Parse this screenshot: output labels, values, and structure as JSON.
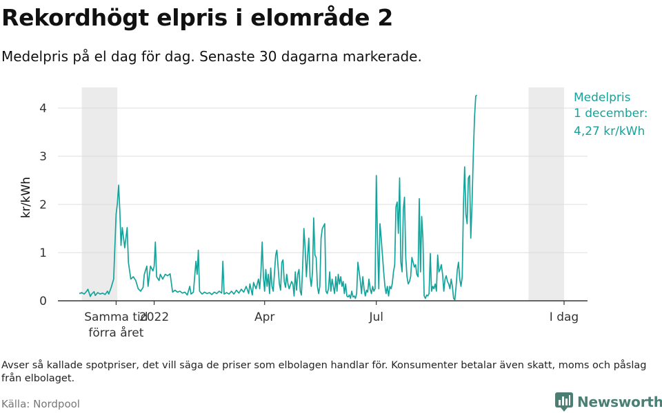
{
  "title": "Rekordhögt elpris i elområde 2",
  "subtitle": "Medelpris på el dag för dag.  Senaste 30 dagarna markerade.",
  "footnote": "Avser så kallade spotpriser, det vill säga de priser som elbolagen handlar för. Konsumenter betalar även skatt, moms och påslag från elbolaget.",
  "source": "Källa: Nordpool",
  "logo": {
    "text": "Newsworthy",
    "icon": "bar-chart-icon"
  },
  "colors": {
    "line": "#14a39a",
    "shade": "#ebebeb",
    "grid": "#dddddd",
    "axis": "#333333",
    "logo": "#4b7f73"
  },
  "chart_data": {
    "type": "line",
    "title": "Rekordhögt elpris i elområde 2",
    "xlabel": "",
    "ylabel": "kr/kWh",
    "ylim": [
      0,
      4.5
    ],
    "yticks": [
      0,
      1,
      2,
      3,
      4
    ],
    "grid": true,
    "x_start": "2021-11-01",
    "x_end": "2022-12-01",
    "xticks": [
      {
        "date": "2021-12-01",
        "label": "Samma tid",
        "label2": "förra året"
      },
      {
        "date": "2022-01-01",
        "label": "2022",
        "label2": ""
      },
      {
        "date": "2022-04-01",
        "label": "Apr",
        "label2": ""
      },
      {
        "date": "2022-07-01",
        "label": "Jul",
        "label2": ""
      },
      {
        "date": "2022-12-01",
        "label": "I dag",
        "label2": ""
      }
    ],
    "shaded_ranges": [
      {
        "from": "2021-11-03",
        "to": "2021-12-02"
      },
      {
        "from": "2022-11-02",
        "to": "2022-12-01"
      }
    ],
    "annotation": {
      "line1": "Medelpris",
      "line2": "1 december:",
      "line3": "4,27 kr/kWh",
      "date": "2022-12-01",
      "value": 4.27
    },
    "series": [
      {
        "points": [
          [
            "2021-11-01",
            0.15
          ],
          [
            "2021-11-03",
            0.17
          ],
          [
            "2021-11-05",
            0.14
          ],
          [
            "2021-11-07",
            0.2
          ],
          [
            "2021-11-08",
            0.24
          ],
          [
            "2021-11-10",
            0.09
          ],
          [
            "2021-11-11",
            0.14
          ],
          [
            "2021-11-13",
            0.19
          ],
          [
            "2021-11-14",
            0.11
          ],
          [
            "2021-11-16",
            0.17
          ],
          [
            "2021-11-18",
            0.14
          ],
          [
            "2021-11-20",
            0.16
          ],
          [
            "2021-11-22",
            0.13
          ],
          [
            "2021-11-24",
            0.2
          ],
          [
            "2021-11-25",
            0.14
          ],
          [
            "2021-11-27",
            0.28
          ],
          [
            "2021-11-29",
            0.45
          ],
          [
            "2021-12-01",
            1.8
          ],
          [
            "2021-12-02",
            2.02
          ],
          [
            "2021-12-03",
            2.4
          ],
          [
            "2021-12-04",
            1.9
          ],
          [
            "2021-12-05",
            1.15
          ],
          [
            "2021-12-06",
            1.52
          ],
          [
            "2021-12-08",
            1.1
          ],
          [
            "2021-12-10",
            1.52
          ],
          [
            "2021-12-11",
            0.8
          ],
          [
            "2021-12-13",
            0.45
          ],
          [
            "2021-12-15",
            0.5
          ],
          [
            "2021-12-17",
            0.42
          ],
          [
            "2021-12-19",
            0.25
          ],
          [
            "2021-12-21",
            0.2
          ],
          [
            "2021-12-23",
            0.28
          ],
          [
            "2021-12-24",
            0.55
          ],
          [
            "2021-12-26",
            0.72
          ],
          [
            "2021-12-27",
            0.3
          ],
          [
            "2021-12-29",
            0.72
          ],
          [
            "2021-12-31",
            0.62
          ],
          [
            "2022-01-01",
            0.72
          ],
          [
            "2022-01-02",
            1.22
          ],
          [
            "2022-01-03",
            0.5
          ],
          [
            "2022-01-05",
            0.42
          ],
          [
            "2022-01-06",
            0.55
          ],
          [
            "2022-01-08",
            0.45
          ],
          [
            "2022-01-10",
            0.55
          ],
          [
            "2022-01-12",
            0.52
          ],
          [
            "2022-01-14",
            0.56
          ],
          [
            "2022-01-16",
            0.18
          ],
          [
            "2022-01-18",
            0.22
          ],
          [
            "2022-01-20",
            0.18
          ],
          [
            "2022-01-22",
            0.2
          ],
          [
            "2022-01-24",
            0.16
          ],
          [
            "2022-01-26",
            0.18
          ],
          [
            "2022-01-28",
            0.12
          ],
          [
            "2022-01-30",
            0.3
          ],
          [
            "2022-01-31",
            0.14
          ],
          [
            "2022-02-02",
            0.18
          ],
          [
            "2022-02-04",
            0.82
          ],
          [
            "2022-02-05",
            0.55
          ],
          [
            "2022-02-06",
            1.05
          ],
          [
            "2022-02-07",
            0.2
          ],
          [
            "2022-02-09",
            0.14
          ],
          [
            "2022-02-11",
            0.18
          ],
          [
            "2022-02-13",
            0.15
          ],
          [
            "2022-02-15",
            0.17
          ],
          [
            "2022-02-17",
            0.13
          ],
          [
            "2022-02-19",
            0.18
          ],
          [
            "2022-02-21",
            0.15
          ],
          [
            "2022-02-23",
            0.2
          ],
          [
            "2022-02-25",
            0.16
          ],
          [
            "2022-02-26",
            0.82
          ],
          [
            "2022-02-27",
            0.14
          ],
          [
            "2022-03-01",
            0.17
          ],
          [
            "2022-03-03",
            0.14
          ],
          [
            "2022-03-05",
            0.2
          ],
          [
            "2022-03-07",
            0.14
          ],
          [
            "2022-03-09",
            0.22
          ],
          [
            "2022-03-11",
            0.16
          ],
          [
            "2022-03-13",
            0.24
          ],
          [
            "2022-03-15",
            0.18
          ],
          [
            "2022-03-17",
            0.3
          ],
          [
            "2022-03-19",
            0.15
          ],
          [
            "2022-03-20",
            0.35
          ],
          [
            "2022-03-22",
            0.12
          ],
          [
            "2022-03-23",
            0.38
          ],
          [
            "2022-03-25",
            0.25
          ],
          [
            "2022-03-27",
            0.45
          ],
          [
            "2022-03-28",
            0.25
          ],
          [
            "2022-03-29",
            0.6
          ],
          [
            "2022-03-30",
            1.22
          ],
          [
            "2022-03-31",
            0.5
          ],
          [
            "2022-04-01",
            0.2
          ],
          [
            "2022-04-02",
            0.65
          ],
          [
            "2022-04-03",
            0.3
          ],
          [
            "2022-04-04",
            0.55
          ],
          [
            "2022-04-05",
            0.15
          ],
          [
            "2022-04-06",
            0.68
          ],
          [
            "2022-04-07",
            0.3
          ],
          [
            "2022-04-08",
            0.2
          ],
          [
            "2022-04-10",
            0.95
          ],
          [
            "2022-04-11",
            1.05
          ],
          [
            "2022-04-12",
            0.7
          ],
          [
            "2022-04-13",
            0.35
          ],
          [
            "2022-04-14",
            0.22
          ],
          [
            "2022-04-15",
            0.8
          ],
          [
            "2022-04-16",
            0.85
          ],
          [
            "2022-04-17",
            0.4
          ],
          [
            "2022-04-18",
            0.28
          ],
          [
            "2022-04-19",
            0.55
          ],
          [
            "2022-04-20",
            0.35
          ],
          [
            "2022-04-21",
            0.25
          ],
          [
            "2022-04-23",
            0.4
          ],
          [
            "2022-04-24",
            0.35
          ],
          [
            "2022-04-25",
            0.1
          ],
          [
            "2022-04-26",
            0.6
          ],
          [
            "2022-04-27",
            0.22
          ],
          [
            "2022-04-28",
            0.55
          ],
          [
            "2022-04-29",
            0.65
          ],
          [
            "2022-04-30",
            0.2
          ],
          [
            "2022-05-01",
            0.12
          ],
          [
            "2022-05-02",
            0.7
          ],
          [
            "2022-05-03",
            1.5
          ],
          [
            "2022-05-04",
            1.1
          ],
          [
            "2022-05-05",
            0.5
          ],
          [
            "2022-05-06",
            0.9
          ],
          [
            "2022-05-07",
            1.3
          ],
          [
            "2022-05-08",
            0.5
          ],
          [
            "2022-05-09",
            0.3
          ],
          [
            "2022-05-10",
            0.6
          ],
          [
            "2022-05-11",
            1.72
          ],
          [
            "2022-05-12",
            0.95
          ],
          [
            "2022-05-13",
            0.9
          ],
          [
            "2022-05-14",
            0.3
          ],
          [
            "2022-05-15",
            0.15
          ],
          [
            "2022-05-16",
            0.3
          ],
          [
            "2022-05-17",
            1.3
          ],
          [
            "2022-05-18",
            1.5
          ],
          [
            "2022-05-19",
            1.55
          ],
          [
            "2022-05-20",
            1.6
          ],
          [
            "2022-05-21",
            0.2
          ],
          [
            "2022-05-22",
            0.15
          ],
          [
            "2022-05-23",
            0.25
          ],
          [
            "2022-05-24",
            0.6
          ],
          [
            "2022-05-25",
            0.2
          ],
          [
            "2022-05-26",
            0.45
          ],
          [
            "2022-05-27",
            0.3
          ],
          [
            "2022-05-28",
            0.15
          ],
          [
            "2022-05-29",
            0.5
          ],
          [
            "2022-05-30",
            0.2
          ],
          [
            "2022-05-31",
            0.55
          ],
          [
            "2022-06-01",
            0.35
          ],
          [
            "2022-06-02",
            0.5
          ],
          [
            "2022-06-03",
            0.3
          ],
          [
            "2022-06-04",
            0.4
          ],
          [
            "2022-06-05",
            0.15
          ],
          [
            "2022-06-06",
            0.35
          ],
          [
            "2022-06-07",
            0.1
          ],
          [
            "2022-06-08",
            0.08
          ],
          [
            "2022-06-09",
            0.12
          ],
          [
            "2022-06-10",
            0.05
          ],
          [
            "2022-06-11",
            0.2
          ],
          [
            "2022-06-12",
            0.08
          ],
          [
            "2022-06-13",
            0.1
          ],
          [
            "2022-06-14",
            0.05
          ],
          [
            "2022-06-15",
            0.15
          ],
          [
            "2022-06-16",
            0.8
          ],
          [
            "2022-06-17",
            0.6
          ],
          [
            "2022-06-18",
            0.4
          ],
          [
            "2022-06-19",
            0.15
          ],
          [
            "2022-06-20",
            0.5
          ],
          [
            "2022-06-21",
            0.25
          ],
          [
            "2022-06-22",
            0.1
          ],
          [
            "2022-06-23",
            0.22
          ],
          [
            "2022-06-24",
            0.18
          ],
          [
            "2022-06-25",
            0.45
          ],
          [
            "2022-06-26",
            0.25
          ],
          [
            "2022-06-27",
            0.15
          ],
          [
            "2022-06-28",
            0.3
          ],
          [
            "2022-06-29",
            0.2
          ],
          [
            "2022-06-30",
            0.25
          ],
          [
            "2022-07-01",
            2.6
          ],
          [
            "2022-07-02",
            1.2
          ],
          [
            "2022-07-03",
            0.25
          ],
          [
            "2022-07-04",
            1.6
          ],
          [
            "2022-07-05",
            1.3
          ],
          [
            "2022-07-06",
            0.95
          ],
          [
            "2022-07-07",
            0.6
          ],
          [
            "2022-07-08",
            0.3
          ],
          [
            "2022-07-09",
            0.15
          ],
          [
            "2022-07-10",
            0.3
          ],
          [
            "2022-07-11",
            0.1
          ],
          [
            "2022-07-12",
            0.3
          ],
          [
            "2022-07-13",
            0.25
          ],
          [
            "2022-07-14",
            0.35
          ],
          [
            "2022-07-15",
            0.6
          ],
          [
            "2022-07-16",
            0.75
          ],
          [
            "2022-07-17",
            1.95
          ],
          [
            "2022-07-18",
            2.05
          ],
          [
            "2022-07-19",
            1.4
          ],
          [
            "2022-07-20",
            2.55
          ],
          [
            "2022-07-21",
            0.8
          ],
          [
            "2022-07-22",
            0.6
          ],
          [
            "2022-07-23",
            1.9
          ],
          [
            "2022-07-24",
            2.15
          ],
          [
            "2022-07-25",
            0.9
          ],
          [
            "2022-07-26",
            0.5
          ],
          [
            "2022-07-27",
            0.35
          ],
          [
            "2022-07-28",
            0.4
          ],
          [
            "2022-07-29",
            0.5
          ],
          [
            "2022-07-30",
            0.9
          ],
          [
            "2022-07-31",
            0.8
          ],
          [
            "2022-08-01",
            0.7
          ],
          [
            "2022-08-02",
            0.75
          ],
          [
            "2022-08-03",
            0.55
          ],
          [
            "2022-08-04",
            0.5
          ],
          [
            "2022-08-05",
            2.12
          ],
          [
            "2022-08-06",
            0.6
          ],
          [
            "2022-08-07",
            1.75
          ],
          [
            "2022-08-08",
            1.3
          ],
          [
            "2022-08-09",
            0.1
          ],
          [
            "2022-08-10",
            0.05
          ],
          [
            "2022-08-11",
            0.12
          ],
          [
            "2022-08-12",
            0.1
          ],
          [
            "2022-08-13",
            0.15
          ],
          [
            "2022-08-14",
            0.98
          ],
          [
            "2022-08-15",
            0.2
          ],
          [
            "2022-08-16",
            0.3
          ],
          [
            "2022-08-17",
            0.25
          ],
          [
            "2022-08-18",
            0.35
          ],
          [
            "2022-08-19",
            0.2
          ],
          [
            "2022-08-20",
            0.95
          ],
          [
            "2022-08-21",
            0.6
          ],
          [
            "2022-08-22",
            0.65
          ],
          [
            "2022-08-23",
            0.75
          ],
          [
            "2022-08-24",
            0.55
          ],
          [
            "2022-08-25",
            0.2
          ],
          [
            "2022-08-26",
            0.45
          ],
          [
            "2022-08-27",
            0.52
          ],
          [
            "2022-08-28",
            0.4
          ],
          [
            "2022-08-29",
            0.35
          ],
          [
            "2022-08-30",
            0.25
          ],
          [
            "2022-08-31",
            0.45
          ],
          [
            "2022-09-01",
            0.3
          ],
          [
            "2022-09-02",
            0.05
          ],
          [
            "2022-09-03",
            0.02
          ],
          [
            "2022-09-04",
            0.3
          ],
          [
            "2022-09-05",
            0.65
          ],
          [
            "2022-09-06",
            0.8
          ],
          [
            "2022-09-07",
            0.45
          ],
          [
            "2022-09-08",
            0.3
          ],
          [
            "2022-09-09",
            0.5
          ],
          [
            "2022-09-10",
            2.0
          ],
          [
            "2022-09-11",
            2.78
          ],
          [
            "2022-09-12",
            1.8
          ],
          [
            "2022-09-13",
            1.6
          ],
          [
            "2022-09-14",
            2.55
          ],
          [
            "2022-09-15",
            2.6
          ],
          [
            "2022-09-16",
            1.3
          ],
          [
            "2022-09-17",
            2.0
          ],
          [
            "2022-09-18",
            3.0
          ],
          [
            "2022-09-19",
            3.8
          ],
          [
            "2022-09-20",
            4.25
          ],
          [
            "2022-09-21",
            4.27
          ]
        ]
      }
    ]
  }
}
